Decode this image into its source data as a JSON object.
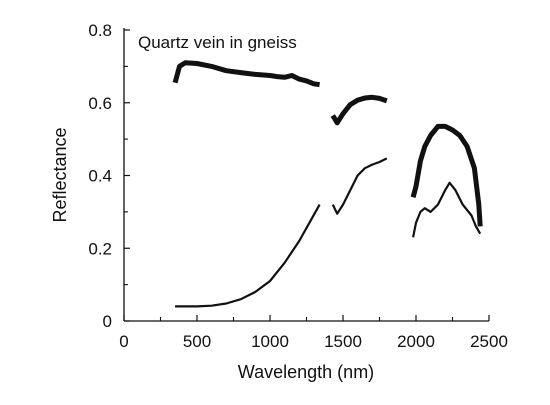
{
  "chart_data": {
    "type": "line",
    "annotation": "Quartz vein in gneiss",
    "xlabel": "Wavelength (nm)",
    "ylabel": "Reflectance",
    "xlim": [
      0,
      2500
    ],
    "ylim": [
      0,
      0.8
    ],
    "xticks": [
      "0",
      "500",
      "1000",
      "1500",
      "2000",
      "2500"
    ],
    "yticks": [
      "0",
      "0.2",
      "0.4",
      "0.6",
      "0.8"
    ],
    "grid": false,
    "legend": "none",
    "colors": {
      "line": "#111111",
      "axis": "#111111"
    },
    "series": [
      {
        "segments": [
          [
            [
              350,
              0.655
            ],
            [
              380,
              0.7
            ],
            [
              420,
              0.71
            ],
            [
              500,
              0.708
            ],
            [
              600,
              0.7
            ],
            [
              700,
              0.688
            ],
            [
              800,
              0.683
            ],
            [
              900,
              0.678
            ],
            [
              1000,
              0.675
            ],
            [
              1050,
              0.672
            ],
            [
              1100,
              0.67
            ],
            [
              1150,
              0.675
            ],
            [
              1200,
              0.665
            ],
            [
              1250,
              0.66
            ],
            [
              1300,
              0.652
            ],
            [
              1340,
              0.65
            ]
          ],
          [
            [
              1430,
              0.565
            ],
            [
              1460,
              0.545
            ],
            [
              1500,
              0.57
            ],
            [
              1550,
              0.595
            ],
            [
              1600,
              0.607
            ],
            [
              1650,
              0.613
            ],
            [
              1700,
              0.615
            ],
            [
              1750,
              0.612
            ],
            [
              1800,
              0.605
            ]
          ],
          [
            [
              1980,
              0.34
            ],
            [
              2000,
              0.37
            ],
            [
              2030,
              0.44
            ],
            [
              2060,
              0.48
            ],
            [
              2100,
              0.51
            ],
            [
              2150,
              0.535
            ],
            [
              2200,
              0.535
            ],
            [
              2250,
              0.525
            ],
            [
              2300,
              0.51
            ],
            [
              2350,
              0.48
            ],
            [
              2400,
              0.42
            ],
            [
              2430,
              0.32
            ],
            [
              2440,
              0.26
            ]
          ]
        ]
      },
      {
        "segments": [
          [
            [
              350,
              0.04
            ],
            [
              500,
              0.04
            ],
            [
              600,
              0.042
            ],
            [
              700,
              0.048
            ],
            [
              800,
              0.06
            ],
            [
              900,
              0.08
            ],
            [
              1000,
              0.11
            ],
            [
              1100,
              0.16
            ],
            [
              1200,
              0.22
            ],
            [
              1270,
              0.27
            ],
            [
              1340,
              0.32
            ]
          ],
          [
            [
              1430,
              0.32
            ],
            [
              1460,
              0.295
            ],
            [
              1500,
              0.32
            ],
            [
              1550,
              0.36
            ],
            [
              1600,
              0.4
            ],
            [
              1650,
              0.42
            ],
            [
              1700,
              0.43
            ],
            [
              1750,
              0.437
            ],
            [
              1800,
              0.447
            ]
          ],
          [
            [
              1980,
              0.23
            ],
            [
              2000,
              0.27
            ],
            [
              2030,
              0.3
            ],
            [
              2060,
              0.31
            ],
            [
              2100,
              0.3
            ],
            [
              2150,
              0.32
            ],
            [
              2200,
              0.36
            ],
            [
              2230,
              0.38
            ],
            [
              2270,
              0.36
            ],
            [
              2320,
              0.32
            ],
            [
              2380,
              0.29
            ],
            [
              2410,
              0.26
            ],
            [
              2440,
              0.24
            ]
          ]
        ]
      }
    ]
  }
}
